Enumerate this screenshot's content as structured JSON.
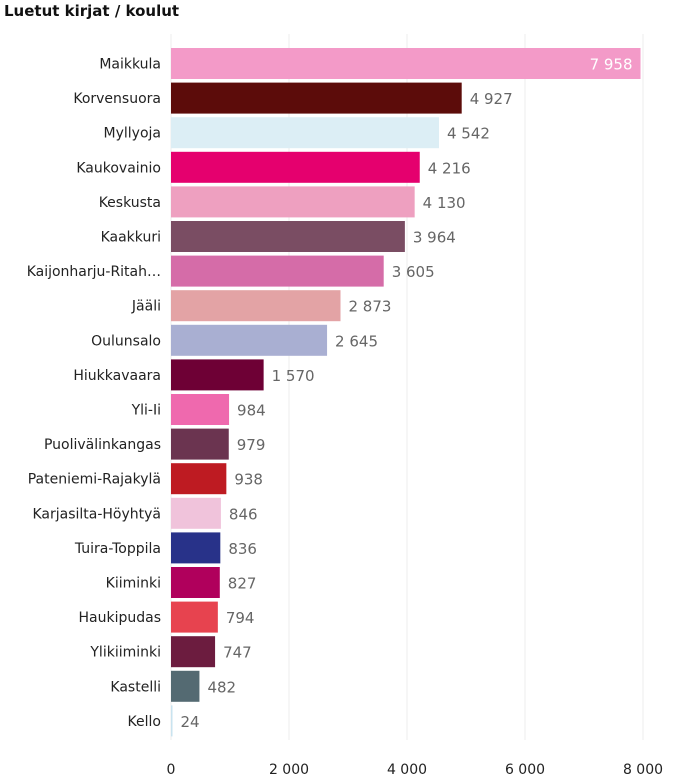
{
  "title": "Luetut kirjat / koulut",
  "chart_data": {
    "type": "bar",
    "orientation": "horizontal",
    "title": "Luetut kirjat / koulut",
    "xlabel": "",
    "ylabel": "",
    "xlim": [
      0,
      8000
    ],
    "x_ticks": [
      0,
      2000,
      4000,
      6000,
      8000
    ],
    "x_tick_labels": [
      "0",
      "2 000",
      "4 000",
      "6 000",
      "8 000"
    ],
    "grid": true,
    "categories": [
      "Maikkula",
      "Korvensuora",
      "Myllyoja",
      "Kaukovainio",
      "Keskusta",
      "Kaakkuri",
      "Kaijonharju-Ritah…",
      "Jääli",
      "Oulunsalo",
      "Hiukkavaara",
      "Yli-Ii",
      "Puolivälinkangas",
      "Pateniemi-Rajakylä",
      "Karjasilta-Höyhtyä",
      "Tuira-Toppila",
      "Kiiminki",
      "Haukipudas",
      "Ylikiiminki",
      "Kastelli",
      "Kello"
    ],
    "values": [
      7958,
      4927,
      4542,
      4216,
      4130,
      3964,
      3605,
      2873,
      2645,
      1570,
      984,
      979,
      938,
      846,
      836,
      827,
      794,
      747,
      482,
      24
    ],
    "value_labels": [
      "7 958",
      "4 927",
      "4 542",
      "4 216",
      "4 130",
      "3 964",
      "3 605",
      "2 873",
      "2 645",
      "1 570",
      "984",
      "979",
      "938",
      "846",
      "836",
      "827",
      "794",
      "747",
      "482",
      "24"
    ],
    "colors": [
      "#F39AC8",
      "#5C0C0A",
      "#DCEEF5",
      "#E5006E",
      "#EEA0C0",
      "#7A4D63",
      "#D56CA8",
      "#E3A3A5",
      "#A9AFD2",
      "#6E0035",
      "#EF69AE",
      "#6B3450",
      "#BE1B22",
      "#F0C3DB",
      "#283289",
      "#B0005C",
      "#E7434F",
      "#6C1C3F",
      "#546A72",
      "#C9E3EF"
    ]
  }
}
